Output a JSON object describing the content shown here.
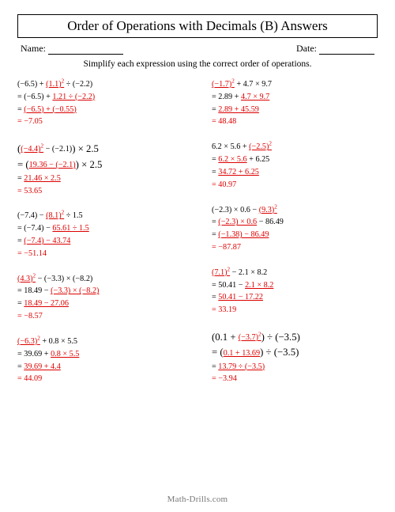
{
  "title": "Order of Operations with Decimals (B) Answers",
  "header": {
    "name_label": "Name:",
    "date_label": "Date:"
  },
  "instruction": "Simplify each expression using the correct order of operations.",
  "footer": "Math-Drills.com",
  "left": [
    {
      "l0a": "(−6.5) + ",
      "l0b": "(1.1)",
      "l0exp": "2",
      "l0c": " ÷ (−2.2)",
      "l1a": "= (−6.5) + ",
      "l1b": "1.21 ÷ (−2.2)",
      "l2a": "= ",
      "l2b": "(−6.5) + (−0.55)",
      "l3": "= −7.05"
    },
    {
      "l0a": "(",
      "l0b": "(−4.4)",
      "l0exp": "2",
      "l0c": " − (−2.1)",
      "l0d": ") × 2.5",
      "l1a": "= (",
      "l1b": "19.36 − (−2.1)",
      "l1c": ") × 2.5",
      "l2a": "= ",
      "l2b": "21.46 × 2.5",
      "l3": "= 53.65"
    },
    {
      "l0a": "(−7.4) − ",
      "l0b": "(8.1)",
      "l0exp": "2",
      "l0c": " ÷ 1.5",
      "l1a": "= (−7.4) − ",
      "l1b": "65.61 ÷ 1.5",
      "l2a": "= ",
      "l2b": "(−7.4) − 43.74",
      "l3": "= −51.14"
    },
    {
      "l0b": "(4.3)",
      "l0exp": "2",
      "l0c": " − (−3.3) × (−8.2)",
      "l1a": "= 18.49 − ",
      "l1b": "(−3.3) × (−8.2)",
      "l2a": "= ",
      "l2b": "18.49 − 27.06",
      "l3": "= −8.57"
    },
    {
      "l0b": "(−6.3)",
      "l0exp": "2",
      "l0c": " + 0.8 × 5.5",
      "l1a": "= 39.69 + ",
      "l1b": "0.8 × 5.5",
      "l2a": "= ",
      "l2b": "39.69 + 4.4",
      "l3": "= 44.09"
    }
  ],
  "right": [
    {
      "l0b": "(−1.7)",
      "l0exp": "2",
      "l0c": " + 4.7 × 9.7",
      "l1a": "= 2.89 + ",
      "l1b": "4.7 × 9.7",
      "l2a": "= ",
      "l2b": "2.89 + 45.59",
      "l3": "= 48.48"
    },
    {
      "l0a": "6.2 × 5.6 + ",
      "l0b": "(−2.5)",
      "l0exp": "2",
      "l1a": "= ",
      "l1b": "6.2 × 5.6",
      "l1c": " + 6.25",
      "l2a": "= ",
      "l2b": "34.72 + 6.25",
      "l3": "= 40.97"
    },
    {
      "l0a": "(−2.3) × 0.6 − ",
      "l0b": "(9.3)",
      "l0exp": "2",
      "l1a": "= ",
      "l1b": "(−2.3) × 0.6",
      "l1c": " − 86.49",
      "l2a": "= ",
      "l2b": "(−1.38) − 86.49",
      "l3": "= −87.87"
    },
    {
      "l0b": "(7.1)",
      "l0exp": "2",
      "l0c": " − 2.1 × 8.2",
      "l1a": "= 50.41 − ",
      "l1b": "2.1 × 8.2",
      "l2a": "= ",
      "l2b": "50.41 − 17.22",
      "l3": "= 33.19"
    },
    {
      "l0a": "(0.1 + ",
      "l0b": "(−3.7)",
      "l0exp": "2",
      "l0d": ") ÷ (−3.5)",
      "l1a": "= (",
      "l1b": "0.1 + 13.69",
      "l1c": ") ÷ (−3.5)",
      "l2a": "= ",
      "l2b": "13.79 ÷ (−3.5)",
      "l3": "= −3.94"
    }
  ]
}
